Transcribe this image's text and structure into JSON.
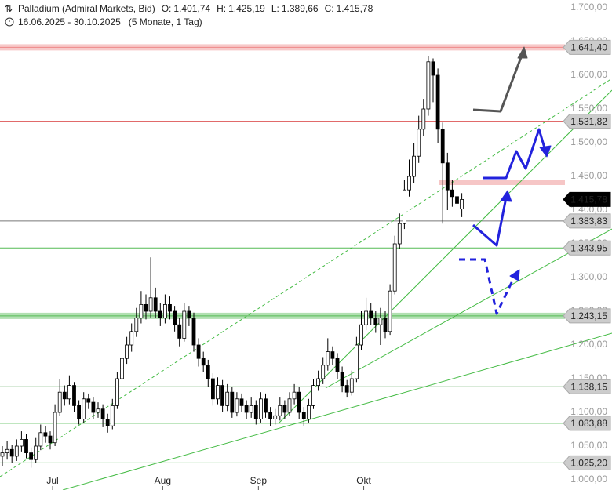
{
  "chart_data": {
    "type": "candlestick",
    "title": "Palladium (Admiral Markets, Bid)",
    "header": [
      {
        "label": "O:",
        "text": "1.401,74"
      },
      {
        "label": "H:",
        "text": "1.425,19"
      },
      {
        "label": "L:",
        "text": "1.389,66"
      },
      {
        "label": "C:",
        "text": "1.415,78"
      }
    ],
    "range": "16.06.2025 - 30.10.2025",
    "span": "(5 Monate, 1 Tag)",
    "open": [
      1035,
      1040,
      1045,
      1035,
      1050,
      1060,
      1040,
      1030,
      1050,
      1070,
      1065,
      1055,
      1100,
      1130,
      1120,
      1140,
      1110,
      1090,
      1120,
      1115,
      1100,
      1105,
      1090,
      1080,
      1110,
      1150,
      1180,
      1200,
      1220,
      1240,
      1260,
      1250,
      1270,
      1250,
      1240,
      1260,
      1250,
      1230,
      1210,
      1250,
      1240,
      1200,
      1180,
      1170,
      1150,
      1120,
      1140,
      1110,
      1130,
      1100,
      1120,
      1110,
      1100,
      1110,
      1090,
      1120,
      1100,
      1090,
      1095,
      1110,
      1100,
      1120,
      1130,
      1100,
      1090,
      1110,
      1140,
      1150,
      1170,
      1190,
      1180,
      1160,
      1140,
      1130,
      1150,
      1200,
      1230,
      1250,
      1240,
      1230,
      1240,
      1220,
      1280,
      1350,
      1380,
      1430,
      1450,
      1480,
      1520,
      1550,
      1620,
      1600,
      1520,
      1470,
      1430,
      1420,
      1401.74
    ],
    "high": [
      1050,
      1058,
      1052,
      1060,
      1072,
      1068,
      1048,
      1062,
      1082,
      1080,
      1072,
      1112,
      1150,
      1140,
      1155,
      1145,
      1118,
      1130,
      1128,
      1122,
      1115,
      1112,
      1098,
      1120,
      1160,
      1192,
      1212,
      1232,
      1255,
      1280,
      1275,
      1330,
      1285,
      1262,
      1275,
      1272,
      1258,
      1240,
      1262,
      1258,
      1248,
      1210,
      1190,
      1178,
      1158,
      1152,
      1148,
      1142,
      1138,
      1130,
      1128,
      1118,
      1122,
      1118,
      1130,
      1128,
      1108,
      1105,
      1122,
      1118,
      1130,
      1142,
      1138,
      1108,
      1120,
      1150,
      1162,
      1182,
      1210,
      1198,
      1188,
      1168,
      1148,
      1162,
      1212,
      1250,
      1270,
      1262,
      1250,
      1255,
      1250,
      1290,
      1362,
      1395,
      1445,
      1475,
      1500,
      1540,
      1565,
      1628,
      1625,
      1610,
      1530,
      1485,
      1445,
      1432,
      1425.19
    ],
    "low": [
      1020,
      1030,
      1025,
      1028,
      1042,
      1032,
      1018,
      1025,
      1044,
      1055,
      1045,
      1050,
      1095,
      1110,
      1112,
      1100,
      1082,
      1085,
      1105,
      1090,
      1092,
      1078,
      1070,
      1075,
      1105,
      1142,
      1172,
      1190,
      1212,
      1232,
      1238,
      1240,
      1240,
      1228,
      1232,
      1238,
      1220,
      1198,
      1205,
      1228,
      1190,
      1168,
      1160,
      1138,
      1110,
      1112,
      1100,
      1102,
      1092,
      1094,
      1100,
      1090,
      1092,
      1082,
      1085,
      1092,
      1080,
      1082,
      1088,
      1090,
      1095,
      1112,
      1090,
      1080,
      1085,
      1105,
      1132,
      1142,
      1162,
      1170,
      1150,
      1130,
      1122,
      1125,
      1145,
      1192,
      1222,
      1230,
      1218,
      1200,
      1210,
      1215,
      1275,
      1342,
      1372,
      1420,
      1440,
      1470,
      1510,
      1540,
      1560,
      1500,
      1380,
      1400,
      1405,
      1398,
      1389.66
    ],
    "close": [
      1040,
      1045,
      1035,
      1050,
      1060,
      1040,
      1030,
      1050,
      1070,
      1065,
      1055,
      1100,
      1130,
      1120,
      1140,
      1110,
      1090,
      1120,
      1115,
      1100,
      1105,
      1090,
      1080,
      1110,
      1150,
      1180,
      1200,
      1220,
      1240,
      1260,
      1250,
      1270,
      1250,
      1240,
      1260,
      1250,
      1230,
      1210,
      1250,
      1240,
      1200,
      1180,
      1170,
      1150,
      1120,
      1140,
      1110,
      1130,
      1100,
      1120,
      1110,
      1100,
      1110,
      1090,
      1120,
      1100,
      1090,
      1095,
      1110,
      1100,
      1120,
      1130,
      1100,
      1090,
      1110,
      1140,
      1150,
      1170,
      1190,
      1180,
      1160,
      1140,
      1130,
      1150,
      1200,
      1230,
      1250,
      1240,
      1230,
      1240,
      1220,
      1280,
      1350,
      1380,
      1430,
      1450,
      1480,
      1520,
      1550,
      1620,
      1600,
      1520,
      1470,
      1430,
      1420,
      1410,
      1415.78
    ],
    "ylim": [
      1000,
      1700
    ],
    "yticks": [
      {
        "value": 1000,
        "label": "1.000,00"
      },
      {
        "value": 1050,
        "label": "1.050,00"
      },
      {
        "value": 1100,
        "label": "1.100,00"
      },
      {
        "value": 1150,
        "label": "1.150,00"
      },
      {
        "value": 1200,
        "label": "1.200,00"
      },
      {
        "value": 1250,
        "label": "1.250,00"
      },
      {
        "value": 1300,
        "label": "1.300,00"
      },
      {
        "value": 1350,
        "label": "1.350,00"
      },
      {
        "value": 1400,
        "label": "1.400,00"
      },
      {
        "value": 1450,
        "label": "1.450,00"
      },
      {
        "value": 1500,
        "label": "1.500,00"
      },
      {
        "value": 1550,
        "label": "1.550,00"
      },
      {
        "value": 1600,
        "label": "1.600,00"
      },
      {
        "value": 1650,
        "label": "1.650,00"
      },
      {
        "value": 1700,
        "label": "1.700,00"
      }
    ],
    "xlim": [
      -0.5,
      127
    ],
    "xticks": [
      {
        "value": 10.5,
        "label": "Jul"
      },
      {
        "value": 33.5,
        "label": "Aug"
      },
      {
        "value": 53.5,
        "label": "Sep"
      },
      {
        "value": 75.5,
        "label": "Okt"
      }
    ],
    "levels": [
      {
        "value": 1641.4,
        "label": "1.641,40",
        "color": "#e88",
        "band": true
      },
      {
        "value": 1531.82,
        "label": "1.531,82",
        "color": "#d55",
        "band": false
      },
      {
        "value": 1415.78,
        "label": "1.415,78",
        "color": "#000",
        "band": false,
        "current": true
      },
      {
        "value": 1383.83,
        "label": "1.383,83",
        "color": "#777",
        "band": false
      },
      {
        "value": 1343.95,
        "label": "1.343,95",
        "color": "#5b5",
        "band": false
      },
      {
        "value": 1243.15,
        "label": "1.243,15",
        "color": "#5b5",
        "band": true
      },
      {
        "value": 1138.15,
        "label": "1.138,15",
        "color": "#6a6",
        "band": false
      },
      {
        "value": 1083.88,
        "label": "1.083,88",
        "color": "#5b5",
        "band": false
      },
      {
        "value": 1025.2,
        "label": "1.025,20",
        "color": "#5b5",
        "band": false
      }
    ]
  }
}
